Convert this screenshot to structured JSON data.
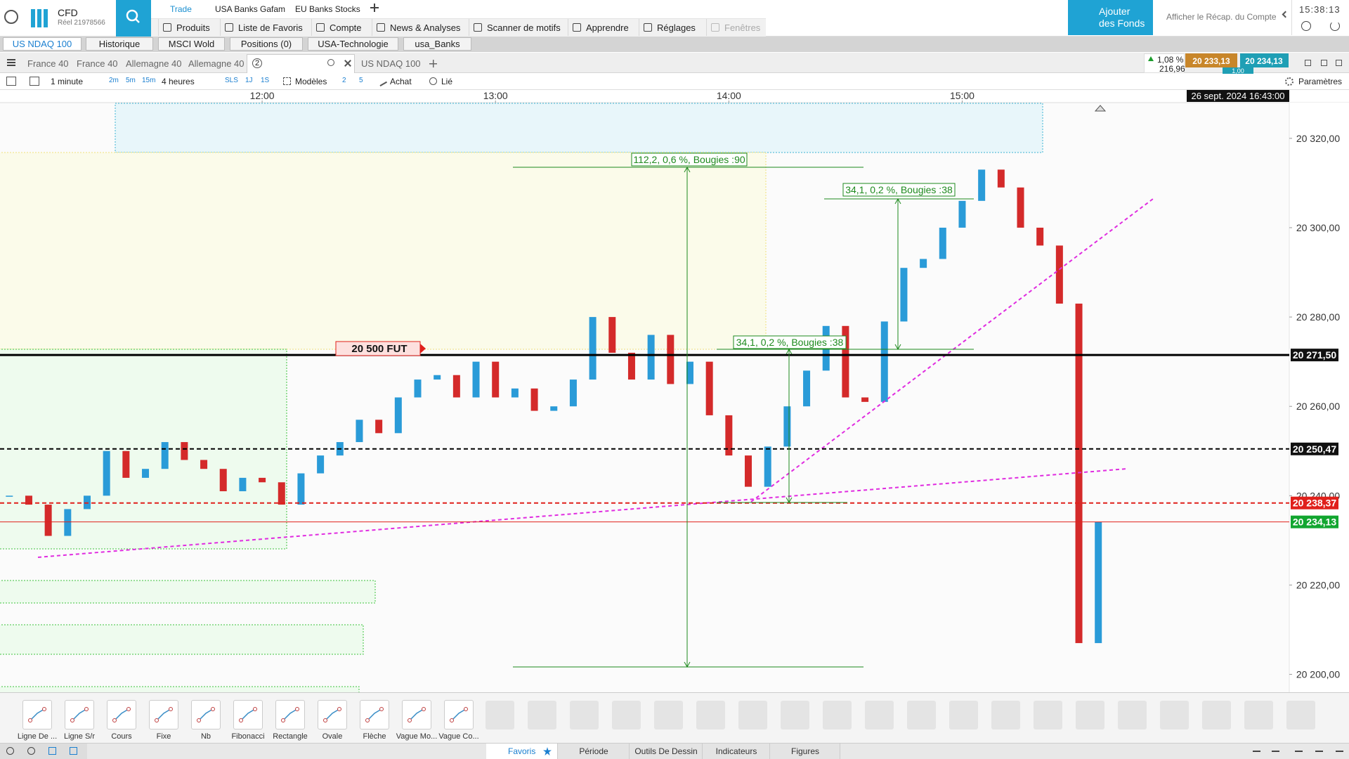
{
  "header": {
    "account_type": "CFD",
    "account_number": "Réel 21978566",
    "top_links": [
      "Trade",
      "USA Banks Gafam",
      "EU Banks Stocks"
    ],
    "menu": [
      "Produits",
      "Liste de Favoris",
      "Compte",
      "News & Analyses",
      "Scanner de motifs",
      "Apprendre",
      "Réglages",
      "Fenêtres"
    ],
    "add_funds": [
      "Ajouter",
      "des Fonds"
    ],
    "summary": "Afficher le Récap. du Compte",
    "clock": "15:38:13"
  },
  "watchlist_tabs": [
    "US NDAQ 100",
    "Historique",
    "MSCI Wold",
    "Positions (0)",
    "USA-Technologie",
    "usa_Banks"
  ],
  "chart_tabs": [
    "France 40",
    "France 40",
    "Allemagne 40",
    "Allemagne 40",
    "US NDAQ 100",
    "US NDAQ 100"
  ],
  "chart_tab_badge": "2",
  "quote": {
    "change": "1,08 %",
    "points": "216,96",
    "bid": "20 233,13",
    "ask": "20 234,13",
    "size": "1,00"
  },
  "toolbar": {
    "interval": "1 minute",
    "quick_intervals": [
      "2m",
      "5m",
      "15m"
    ],
    "period": "4 heures",
    "period_buttons": [
      "SLS",
      "1J",
      "1S"
    ],
    "templates": "Modèles",
    "counts": [
      "2",
      "5"
    ],
    "buy": "Achat",
    "linked": "Lié",
    "settings": "Paramètres"
  },
  "chart": {
    "timestamp": "26 sept. 2024 16:43:00",
    "xlim": [
      652.6,
      984.1
    ],
    "xticks": [
      {
        "value": 720,
        "label": "12:00"
      },
      {
        "value": 780,
        "label": "13:00"
      },
      {
        "value": 840,
        "label": "14:00"
      },
      {
        "value": 900,
        "label": "15:00"
      }
    ],
    "ylim": [
      20196,
      20328
    ],
    "yticks": [
      {
        "value": 20200,
        "label": "20 200,00"
      },
      {
        "value": 20220,
        "label": "20 220,00"
      },
      {
        "value": 20240,
        "label": "20 240,00"
      },
      {
        "value": 20260,
        "label": "20 260,00"
      },
      {
        "value": 20280,
        "label": "20 280,00"
      },
      {
        "value": 20300,
        "label": "20 300,00"
      },
      {
        "value": 20320,
        "label": "20 320,00"
      }
    ],
    "candles": {
      "up_color": "#2a9bd8",
      "down_color": "#d42a2a",
      "x": [
        655,
        660,
        665,
        670,
        675,
        680,
        685,
        690,
        695,
        700,
        705,
        710,
        715,
        720,
        725,
        730,
        735,
        740,
        745,
        750,
        755,
        760,
        765,
        770,
        775,
        780,
        785,
        790,
        795,
        800,
        805,
        810,
        815,
        820,
        825,
        830,
        835,
        840,
        845,
        850,
        855,
        860,
        865,
        870,
        875,
        880,
        885,
        890,
        895,
        900,
        905,
        910,
        915,
        920,
        925,
        930,
        935
      ],
      "closes": [
        20240,
        20238,
        20231,
        20237,
        20240,
        20250,
        20244,
        20246,
        20252,
        20248,
        20246,
        20241,
        20244,
        20243,
        20238,
        20245,
        20249,
        20252,
        20257,
        20254,
        20262,
        20266,
        20267,
        20262,
        20270,
        20262,
        20264,
        20259,
        20260,
        20266,
        20280,
        20272,
        20266,
        20276,
        20265,
        20270,
        20258,
        20249,
        20242,
        20251,
        20260,
        20268,
        20278,
        20262,
        20261,
        20279,
        20291,
        20293,
        20300,
        20306,
        20313,
        20309,
        20300,
        20296,
        20283,
        20207,
        20234.13
      ]
    },
    "levels": [
      {
        "value": 20271.5,
        "label": "20 271,50",
        "color": "#000000",
        "dashed": false,
        "label_color": "#111111"
      },
      {
        "value": 20250.47,
        "label": "20 250,47",
        "color": "#000000",
        "dashed": true,
        "label_color": "#111111"
      },
      {
        "value": 20238.37,
        "label": "20 238,37",
        "color": "#e0201b",
        "dashed": true,
        "label_color": "#e0201b"
      },
      {
        "value": 20234.13,
        "label": "20 234,13",
        "color": "#e0201b",
        "dashed": false,
        "label_color": "#12a630"
      }
    ],
    "order_label": "20 500 FUT",
    "measures": [
      "112,2, 0,6 %, Bougies :90",
      "34,1, 0,2 %, Bougies :38",
      "34,1, 0,2 %, Bougies :38"
    ]
  },
  "drawing_tools": [
    "Ligne De ...",
    "Ligne S/r",
    "Cours",
    "Fixe",
    "Nb",
    "Fibonacci",
    "Rectangle",
    "Ovale",
    "Flèche",
    "Vague Mo...",
    "Vague Co..."
  ],
  "bottom_tabs": [
    "Favoris",
    "Période",
    "Outils De Dessin",
    "Indicateurs",
    "Figures"
  ]
}
